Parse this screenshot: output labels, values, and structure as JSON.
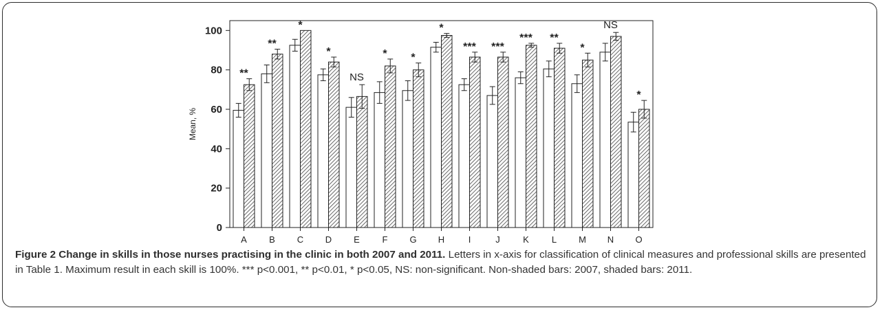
{
  "chart_data": {
    "type": "bar",
    "categories": [
      "A",
      "B",
      "C",
      "D",
      "E",
      "F",
      "G",
      "H",
      "I",
      "J",
      "K",
      "L",
      "M",
      "N",
      "O"
    ],
    "series": [
      {
        "values": [
          59.5,
          78,
          92.5,
          77.5,
          61,
          68.5,
          69.5,
          91.5,
          72.5,
          67,
          76,
          80.5,
          73,
          89,
          53.5
        ],
        "errors": [
          3.5,
          4.5,
          3,
          3,
          5,
          5.5,
          5,
          2.5,
          3,
          4.5,
          3,
          4,
          4.5,
          4.5,
          5
        ]
      },
      {
        "values": [
          72.5,
          88,
          100,
          84,
          66.5,
          82,
          80,
          97.5,
          86.5,
          86.5,
          92.5,
          91,
          85,
          97,
          60
        ],
        "errors": [
          3,
          2.5,
          0,
          2.5,
          6,
          3.5,
          3.5,
          1,
          2.5,
          2.5,
          1,
          2.5,
          3.5,
          2,
          4.5
        ]
      }
    ],
    "significance": [
      "**",
      "**",
      "*",
      "*",
      "NS",
      "*",
      "*",
      "*",
      "***",
      "***",
      "***",
      "**",
      "*",
      "NS",
      "*"
    ],
    "ylabel": "Mean, %",
    "xlabel": "",
    "ylim": [
      0,
      105
    ],
    "yticks": [
      0,
      20,
      40,
      60,
      80,
      100
    ],
    "grid": false,
    "legend": "none",
    "colors": {
      "bar_2007": "#ffffff",
      "bar_2011_hatch": "#444444",
      "axis": "#222222"
    }
  },
  "caption": {
    "title": "Figure 2 Change in skills in those nurses practising in the clinic in both 2007 and 2011.",
    "body": "Letters in x-axis for classification of clinical measures and professional skills are presented in Table 1. Maximum result in each skill is 100%. *** p<0.001, ** p<0.01, * p<0.05, NS: non-significant. Non-shaded bars: 2007, shaded bars: 2011."
  }
}
